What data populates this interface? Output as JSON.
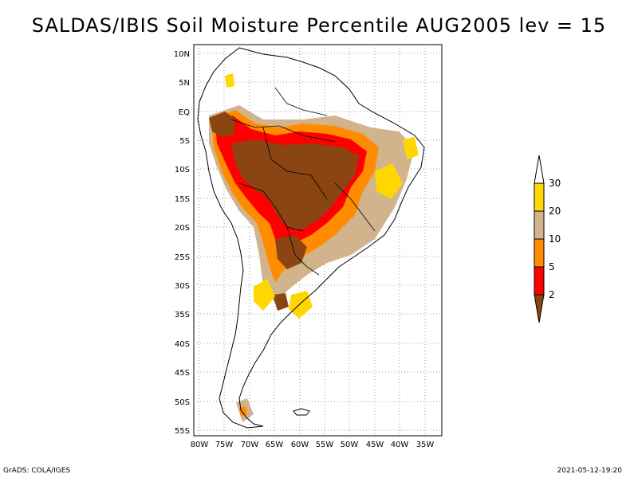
{
  "title": "SALDAS/IBIS Soil Moisture Percentile AUG2005 lev = 15",
  "footer": {
    "left": "GrADS: COLA/IGES",
    "right": "2021-05-12-19:20"
  },
  "map": {
    "lat_labels": [
      "10N",
      "5N",
      "EQ",
      "5S",
      "10S",
      "15S",
      "20S",
      "25S",
      "30S",
      "35S",
      "40S",
      "45S",
      "50S",
      "55S"
    ],
    "lon_labels": [
      "80W",
      "75W",
      "70W",
      "65W",
      "60W",
      "55W",
      "50W",
      "45W",
      "40W",
      "35W"
    ],
    "lat_range": [
      -56,
      12
    ],
    "lon_range": [
      -81,
      -34
    ]
  },
  "legend": {
    "levels": [
      "30",
      "20",
      "10",
      "5",
      "2"
    ],
    "colors": {
      "ge30": "#ffffff",
      "20to30": "#ffd700",
      "10to20": "#d2b48c",
      "5to10": "#ff8c00",
      "2to5": "#ff0000",
      "lt2": "#8b4513"
    }
  }
}
